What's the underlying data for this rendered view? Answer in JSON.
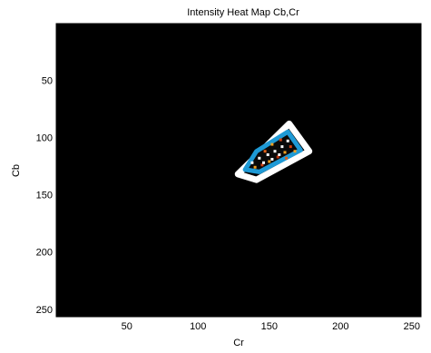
{
  "chart_data": {
    "type": "heatmap",
    "title": "Intensity Heat Map Cb,Cr",
    "xlabel": "Cr",
    "ylabel": "Cb",
    "xlim": [
      0.5,
      256.5
    ],
    "ylim": [
      0.5,
      256.5
    ],
    "y_reversed": true,
    "xticks": [
      50,
      100,
      150,
      200,
      250
    ],
    "yticks": [
      50,
      100,
      150,
      200,
      250
    ],
    "background_color": "#000000",
    "grid": false,
    "legend": "none",
    "regions": [
      {
        "name": "",
        "outline_color": "#ffffff",
        "points": [
          [
            164,
            88
          ],
          [
            178,
            112
          ],
          [
            141,
            137
          ],
          [
            128,
            132
          ]
        ]
      },
      {
        "name": "",
        "outline_color": "#1e9ad6",
        "points": [
          [
            163,
            95
          ],
          [
            172,
            111
          ],
          [
            143,
            130
          ],
          [
            133,
            128
          ],
          [
            141,
            112
          ]
        ]
      }
    ],
    "hot_points": [
      {
        "cr": 140,
        "cb": 126,
        "color": "#f0a020"
      },
      {
        "cr": 145,
        "cb": 124,
        "color": "#d04010"
      },
      {
        "cr": 150,
        "cb": 121,
        "color": "#f0a020"
      },
      {
        "cr": 156,
        "cb": 117,
        "color": "#c03008"
      },
      {
        "cr": 161,
        "cb": 113,
        "color": "#f0a020"
      },
      {
        "cr": 165,
        "cb": 108,
        "color": "#d04010"
      },
      {
        "cr": 147,
        "cb": 112,
        "color": "#e06018"
      },
      {
        "cr": 152,
        "cb": 106,
        "color": "#f0a020"
      },
      {
        "cr": 158,
        "cb": 102,
        "color": "#d04010"
      },
      {
        "cr": 143,
        "cb": 118,
        "color": "#ffffff"
      },
      {
        "cr": 149,
        "cb": 115,
        "color": "#ffffff"
      },
      {
        "cr": 154,
        "cb": 112,
        "color": "#ffffff"
      },
      {
        "cr": 159,
        "cb": 108,
        "color": "#ffffff"
      },
      {
        "cr": 163,
        "cb": 103,
        "color": "#ffffff"
      },
      {
        "cr": 146,
        "cb": 122,
        "color": "#ffffff"
      },
      {
        "cr": 152,
        "cb": 119,
        "color": "#ffffff"
      },
      {
        "cr": 157,
        "cb": 115,
        "color": "#ffffff"
      },
      {
        "cr": 138,
        "cb": 122,
        "color": "#ffffff"
      },
      {
        "cr": 162,
        "cb": 118,
        "color": "#e06018"
      },
      {
        "cr": 168,
        "cb": 112,
        "color": "#f0a020"
      }
    ]
  }
}
